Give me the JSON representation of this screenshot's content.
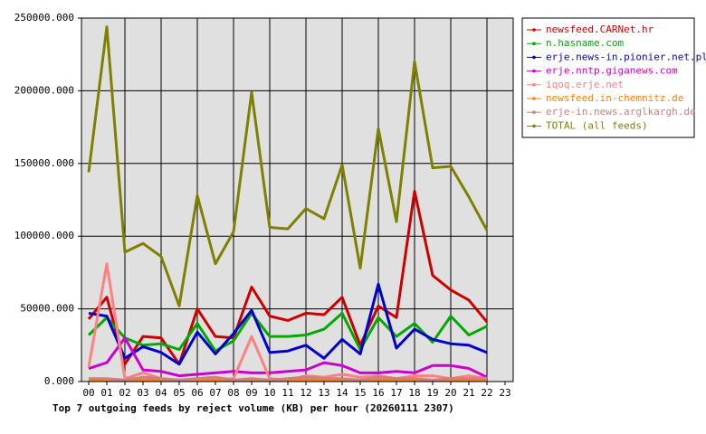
{
  "chart_data": {
    "type": "line",
    "title": "Top 7 outgoing feeds by reject volume (KB) per hour (20260111 2307)",
    "categories": [
      "00",
      "01",
      "02",
      "03",
      "04",
      "05",
      "06",
      "07",
      "08",
      "09",
      "10",
      "11",
      "12",
      "13",
      "14",
      "15",
      "16",
      "17",
      "18",
      "19",
      "20",
      "21",
      "22",
      "23"
    ],
    "ylim": [
      0,
      250000
    ],
    "yticks": [
      {
        "value": 0,
        "label": "0.000"
      },
      {
        "value": 50000,
        "label": "50000.000"
      },
      {
        "value": 100000,
        "label": "100000.000"
      },
      {
        "value": 150000,
        "label": "150000.000"
      },
      {
        "value": 200000,
        "label": "200000.000"
      },
      {
        "value": 250000,
        "label": "250000.000"
      }
    ],
    "grid": true,
    "legend": "outside-right",
    "series": [
      {
        "name": "newsfeed.CARNet.hr",
        "color": "#cc0000",
        "values": [
          43000,
          58000,
          12000,
          31000,
          30000,
          12000,
          50000,
          31000,
          30000,
          65000,
          45000,
          42000,
          47000,
          46000,
          58000,
          25000,
          52000,
          44000,
          131000,
          73000,
          63000,
          56000,
          41000,
          null
        ]
      },
      {
        "name": "n.hasname.com",
        "color": "#00aa00",
        "values": [
          32000,
          44000,
          30000,
          25000,
          26000,
          22000,
          40000,
          21000,
          28000,
          47000,
          31000,
          31000,
          32000,
          36000,
          47000,
          22000,
          44000,
          31000,
          40000,
          27000,
          45000,
          32000,
          38000,
          null
        ]
      },
      {
        "name": "erje.news-in.pionier.net.pl",
        "color": "#0000cc",
        "values": [
          47000,
          45000,
          16000,
          24000,
          20000,
          12000,
          34000,
          19000,
          33000,
          49000,
          20000,
          21000,
          25000,
          16000,
          29000,
          19000,
          67000,
          23000,
          36000,
          29000,
          26000,
          25000,
          20000,
          null
        ]
      },
      {
        "name": "erje.nntp.giganews.com",
        "color": "#cc00cc",
        "values": [
          9000,
          13000,
          30000,
          8000,
          7000,
          4000,
          5000,
          6000,
          7000,
          6000,
          6000,
          7000,
          8000,
          13000,
          11000,
          6000,
          6000,
          7000,
          6000,
          11000,
          11000,
          9000,
          3000,
          null
        ]
      },
      {
        "name": "iqoq.erje.net",
        "color": "#ff8080",
        "values": [
          10000,
          81000,
          2000,
          6000,
          2000,
          1000,
          2000,
          1000,
          2000,
          31000,
          2000,
          1000,
          4000,
          3000,
          5000,
          3000,
          4000,
          2000,
          4000,
          4000,
          2000,
          4000,
          2000,
          null
        ]
      },
      {
        "name": "newsfeed.in-chemnitz.de",
        "color": "#ff8000",
        "values": [
          1000,
          1000,
          1000,
          1000,
          1000,
          1000,
          1000,
          1000,
          1000,
          1000,
          1000,
          1000,
          1000,
          1000,
          1000,
          1000,
          1000,
          1000,
          1000,
          1000,
          1000,
          1000,
          1000,
          null
        ]
      },
      {
        "name": "erje-in.news.arglkargh.de",
        "color": "#cc8080",
        "values": [
          2000,
          2000,
          1000,
          3000,
          2000,
          1000,
          2000,
          3000,
          1000,
          2000,
          1000,
          2000,
          3000,
          2000,
          2000,
          1000,
          3000,
          2000,
          2000,
          1000,
          2000,
          2000,
          2000,
          null
        ]
      },
      {
        "name": "TOTAL (all feeds)",
        "color": "#808000",
        "values": [
          144000,
          244000,
          89000,
          95000,
          86000,
          52000,
          128000,
          81000,
          103000,
          199000,
          106000,
          105000,
          119000,
          112000,
          149000,
          78000,
          174000,
          110000,
          220000,
          147000,
          148000,
          127000,
          104000,
          null
        ]
      }
    ]
  }
}
